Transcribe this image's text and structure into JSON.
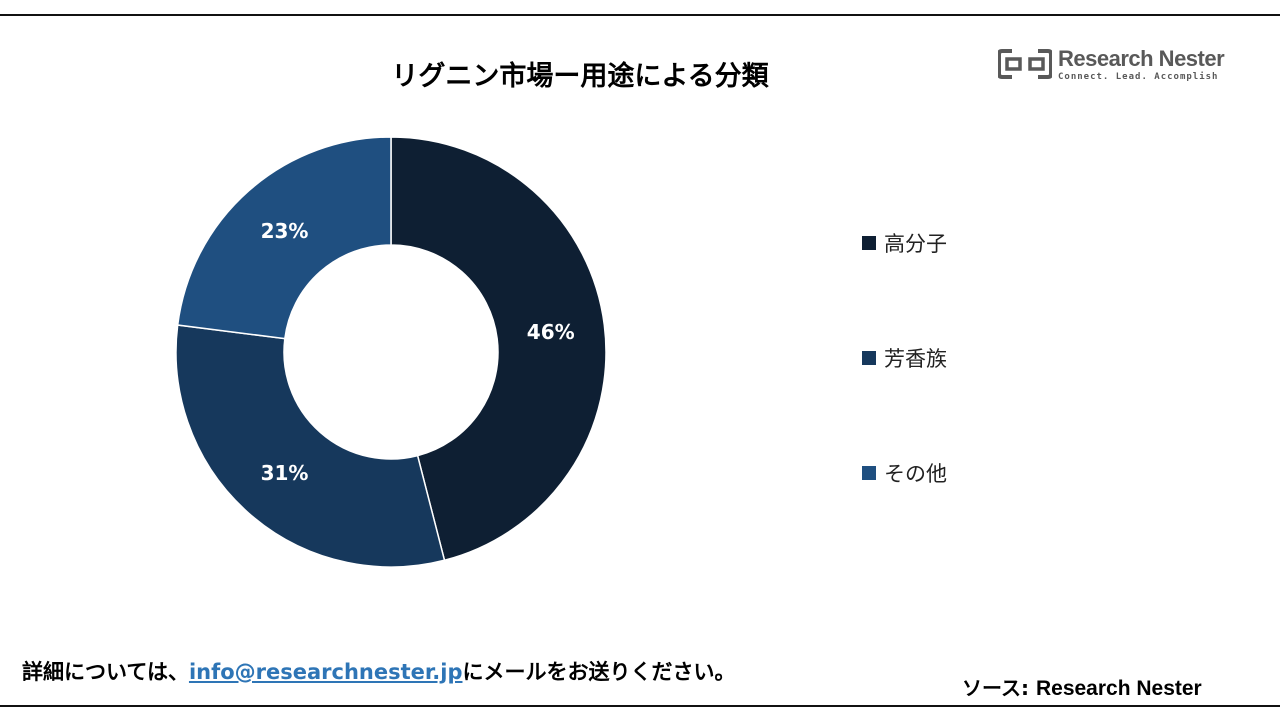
{
  "title": "リグニン市場ー用途による分類",
  "logo": {
    "name": "Research Nester",
    "tagline": "Connect. Lead. Accomplish"
  },
  "chart_data": {
    "type": "pie",
    "donut": true,
    "categories": [
      "高分子",
      "芳香族",
      "その他"
    ],
    "values": [
      46,
      31,
      23
    ],
    "labels": [
      "46%",
      "31%",
      "23%"
    ],
    "colors": [
      "#0e1f33",
      "#16385c",
      "#1f4f80"
    ],
    "legend_position": "right"
  },
  "footer": {
    "prefix": "詳細については、",
    "email": "info@researchnester.jp",
    "suffix": "にメールをお送りください。"
  },
  "source": {
    "label": "ソース: ",
    "name": "Research Nester"
  }
}
